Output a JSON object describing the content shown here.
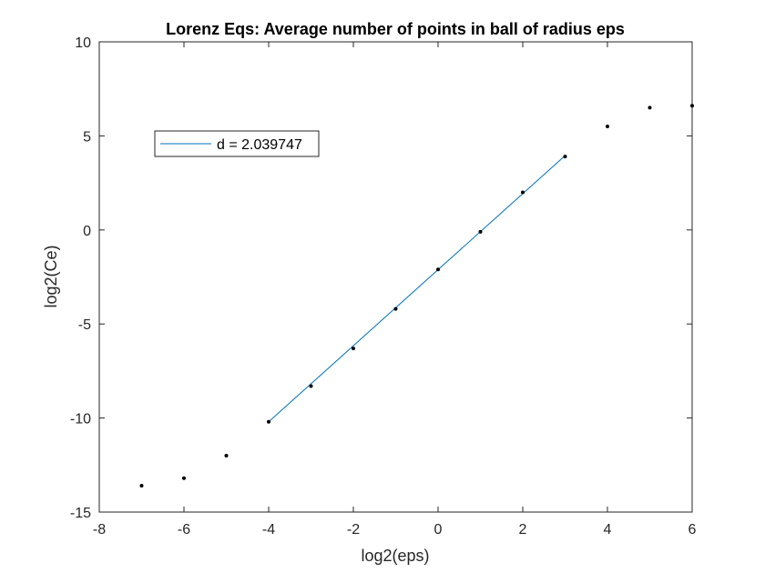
{
  "chart_data": {
    "type": "scatter",
    "title": "Lorenz Eqs: Average number of points in ball of radius eps",
    "xlabel": "log2(eps)",
    "ylabel": "log2(Ce)",
    "xlim": [
      -8,
      6
    ],
    "ylim": [
      -15,
      10
    ],
    "xticks": [
      "-8",
      "-6",
      "-4",
      "-2",
      "0",
      "2",
      "4",
      "6"
    ],
    "yticks": [
      "-15",
      "-10",
      "-5",
      "0",
      "5",
      "10"
    ],
    "grid": false,
    "legend_position": "upper-left",
    "colors": {
      "fit_line": "#0072BD",
      "points": "#000000"
    },
    "points": {
      "x": [
        -7,
        -6,
        -5,
        -4,
        -3,
        -2,
        -1,
        0,
        1,
        2,
        3,
        4,
        5,
        6
      ],
      "y": [
        -13.6,
        -13.2,
        -12.0,
        -10.2,
        -8.3,
        -6.3,
        -4.2,
        -2.1,
        -0.1,
        2.0,
        3.9,
        5.5,
        6.5,
        6.6
      ]
    },
    "series": [
      {
        "name": "d = 2.039747",
        "type": "line",
        "x": [
          -4,
          3
        ],
        "y": [
          -10.2,
          3.95
        ]
      }
    ]
  }
}
